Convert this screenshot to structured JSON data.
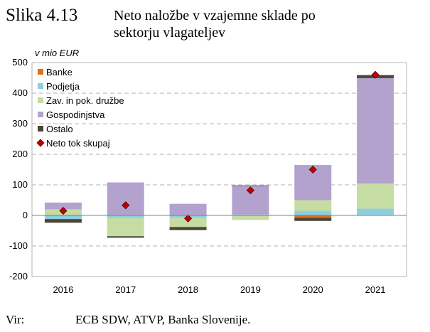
{
  "figure": {
    "label": "Slika 4.13",
    "title": "Neto naložbe v vzajemne sklade po\nsektorju vlagateljev",
    "source_label": "Vir:",
    "source_text": "ECB SDW, ATVP, Banka Slovenije."
  },
  "chart_data": {
    "type": "bar",
    "stacked": true,
    "unit_label": "v mio EUR",
    "categories": [
      "2016",
      "2017",
      "2018",
      "2019",
      "2020",
      "2021"
    ],
    "ylim": [
      -200,
      500
    ],
    "yticks": [
      -200,
      -100,
      0,
      100,
      200,
      300,
      400,
      500
    ],
    "grid": true,
    "legend_position": "top-left",
    "series": [
      {
        "name": "Banke",
        "color": "#e07020",
        "values": [
          0,
          0,
          0,
          0,
          -8,
          0
        ]
      },
      {
        "name": "Podjetja",
        "color": "#8ecfdf",
        "values": [
          -12,
          -8,
          -8,
          3,
          15,
          22
        ]
      },
      {
        "name": "Zav. in pok. družbe",
        "color": "#c5dca3",
        "values": [
          20,
          -60,
          -30,
          -15,
          35,
          82
        ]
      },
      {
        "name": "Gospodinjstva",
        "color": "#b3a2cd",
        "values": [
          22,
          108,
          38,
          93,
          115,
          345
        ]
      },
      {
        "name": "Ostalo",
        "color": "#4a4535",
        "values": [
          -12,
          -5,
          -10,
          2,
          -10,
          10
        ]
      }
    ],
    "total": {
      "name": "Neto tok skupaj",
      "color": "#c00000",
      "values": [
        15,
        33,
        -10,
        82,
        150,
        460
      ]
    }
  }
}
